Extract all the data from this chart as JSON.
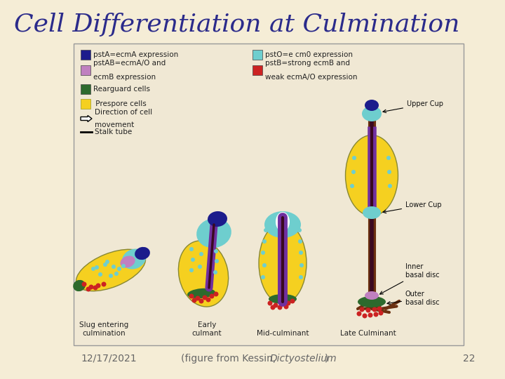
{
  "title": "Cell Differentiation at Culmination",
  "title_color": "#2B2B8B",
  "title_fontsize": 26,
  "bg_color": "#F5EDD6",
  "box_facecolor": "#F0E8D4",
  "box_edgecolor": "#999999",
  "footer_date": "12/17/2021",
  "footer_italic": "Dictyostelium",
  "footer_num": "22",
  "footer_color": "#666666",
  "footer_fontsize": 10,
  "legend_text_color": "#222222",
  "legend_fs": 7.5,
  "col1_blue": "#1C1C8C",
  "col2_cyan": "#6ECECE",
  "col3_lavender": "#C080C0",
  "col4_red": "#CC2222",
  "col5_green": "#2D6A2D",
  "col6_yellow": "#F5D020",
  "yellow": "#F5D020",
  "cyan": "#6ECECE",
  "blue": "#1C1C8C",
  "purple": "#7030A0",
  "dark_purple": "#3A0820",
  "green": "#2D6A2D",
  "red": "#CC2222",
  "brown": "#6B3010",
  "white": "#FFFFFF",
  "black": "#111111",
  "annotation_fs": 7.0
}
